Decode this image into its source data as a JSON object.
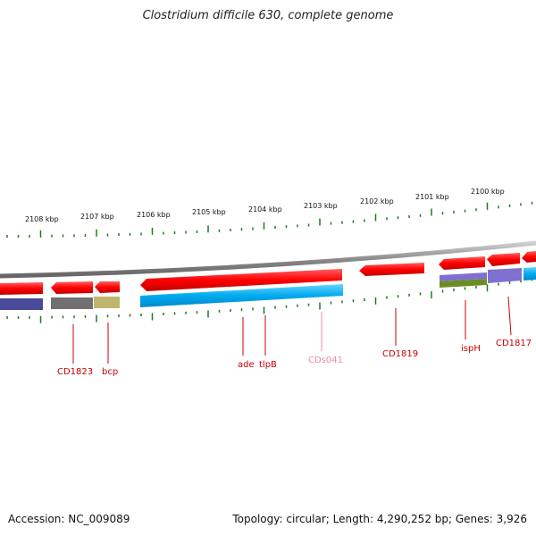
{
  "title": "Clostridium difficile 630, complete genome",
  "footer": {
    "accession": "Accession: NC_009089",
    "summary": "Topology: circular; Length: 4,290,252 bp; Genes: 3,926"
  },
  "colors": {
    "backbone": "#8a8a8a",
    "tick": "#1f7a1f",
    "forward_gene": "#ff0000",
    "reverse_gene": "#ff0000",
    "cds_cyan": "#00aaee",
    "cds_darkblue": "#4a4a9a",
    "cds_grey": "#707070",
    "cds_olive": "#bdb76b",
    "cds_purple": "#8070d0",
    "cds_green": "#6b8e23",
    "label_red": "#cc0000",
    "label_pink": "#ee88aa"
  },
  "scale_labels": [
    "2108 kbp",
    "2107 kbp",
    "2106 kbp",
    "2105 kbp",
    "2104 kbp",
    "2103 kbp",
    "2102 kbp",
    "2101 kbp",
    "2100 kbp"
  ],
  "gene_labels": [
    "CD1823",
    "bcp",
    "ade",
    "tlpB",
    "CDs041",
    "CD1819",
    "ispH",
    "CD1817"
  ]
}
